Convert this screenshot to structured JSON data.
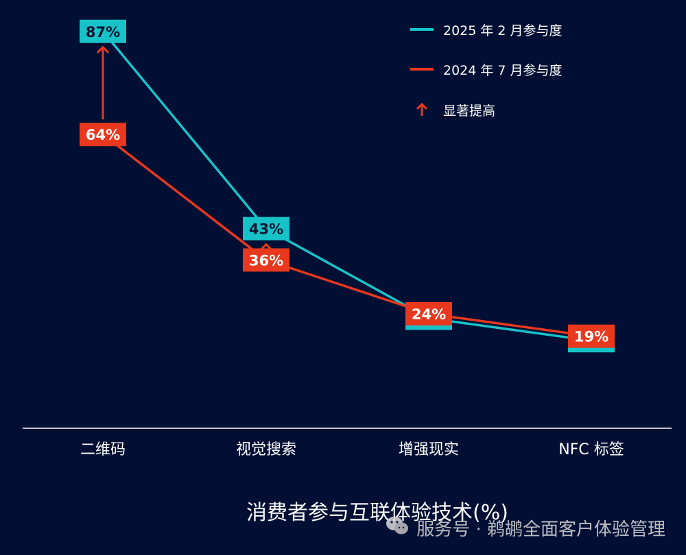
{
  "colors": {
    "background": "#000f33",
    "teal": "#17c3c8",
    "red": "#e8391e",
    "text": "#ffffff"
  },
  "chart_data": {
    "type": "line",
    "title": "消费者参与互联体验技术(%)",
    "categories": [
      "二维码",
      "视觉搜索",
      "增强现实",
      "NFC 标签"
    ],
    "series": [
      {
        "name": "2025 年 2 月参与度",
        "values": [
          87,
          43,
          23,
          18
        ],
        "color": "#17c3c8",
        "labels": [
          "87%",
          "43%",
          "",
          ""
        ]
      },
      {
        "name": "2024 年 7 月参与度",
        "values": [
          64,
          36,
          24,
          19
        ],
        "color": "#e8391e",
        "labels": [
          "64%",
          "36%",
          "24%",
          "19%"
        ]
      }
    ],
    "increase_marker": {
      "label": "显著提高",
      "categories": [
        "二维码",
        "视觉搜索"
      ]
    },
    "ylim": [
      0,
      100
    ],
    "grid": false,
    "legend_position": "top-right"
  },
  "watermark": {
    "text": "服务号 · 鹈鹕全面客户体验管理",
    "icon": "wechat-icon"
  }
}
